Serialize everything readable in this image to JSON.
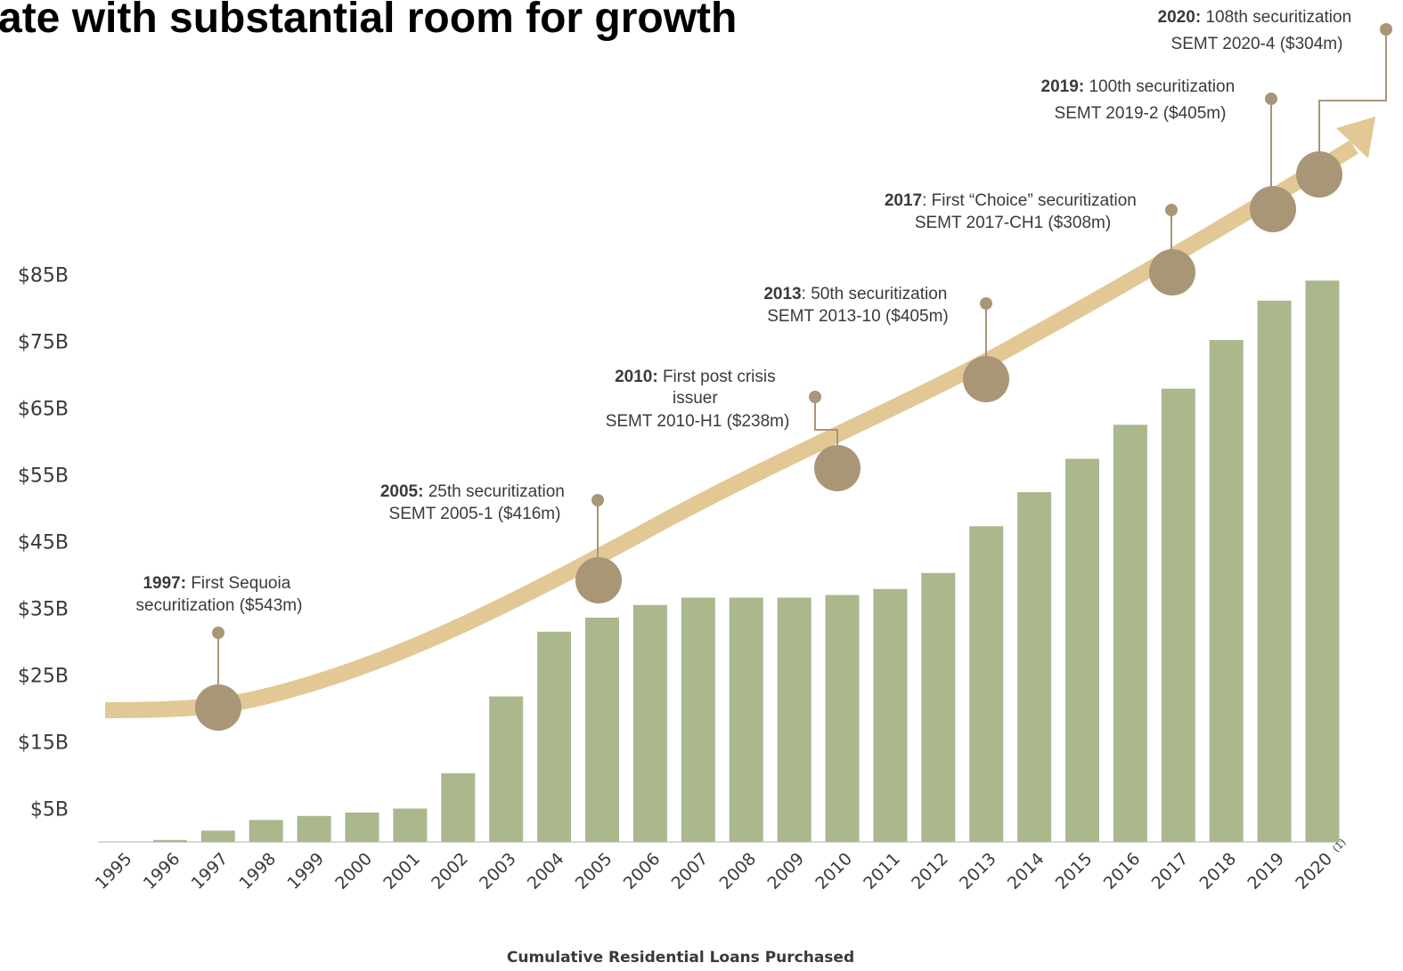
{
  "title": "ate with substantial room for growth",
  "chart_data": {
    "type": "bar",
    "categories": [
      "1995",
      "1996",
      "1997",
      "1998",
      "1999",
      "2000",
      "2001",
      "2002",
      "2003",
      "2004",
      "2005",
      "2006",
      "2007",
      "2008",
      "2009",
      "2010",
      "2011",
      "2012",
      "2013",
      "2014",
      "2015",
      "2016",
      "2017",
      "2018",
      "2019",
      "2020"
    ],
    "category_footnote": {
      "category": "2020",
      "marker": "(1)"
    },
    "values": [
      0,
      0.3,
      1.7,
      3.3,
      3.9,
      4.4,
      5.0,
      10.3,
      21.8,
      31.5,
      33.6,
      35.5,
      36.6,
      36.6,
      36.6,
      37.0,
      37.9,
      40.3,
      47.3,
      52.4,
      57.4,
      62.5,
      67.9,
      75.2,
      81.1,
      84.1
    ],
    "y_ticks": [
      "$5B",
      "$15B",
      "$25B",
      "$35B",
      "$45B",
      "$55B",
      "$65B",
      "$75B",
      "$85B"
    ],
    "ylim": [
      0,
      90
    ],
    "xlabel": "Cumulative Residential Loans Purchased",
    "ylabel": "",
    "bar_color": "#aab88c",
    "trend_color": "#e2c894",
    "marker_color": "#a89677",
    "milestones": [
      {
        "category": "1997",
        "year": "1997:",
        "lines": [
          "First Sequoia",
          "securitization ($543m)"
        ]
      },
      {
        "category": "2005",
        "year": "2005:",
        "lines": [
          "25th securitization",
          "SEMT 2005-1 ($416m)"
        ]
      },
      {
        "category": "2010",
        "year": "2010:",
        "lines": [
          "First post crisis",
          "issuer",
          "SEMT 2010-H1 ($238m)"
        ]
      },
      {
        "category": "2013",
        "year": "2013",
        "lines": [
          ": 50th securitization",
          "SEMT 2013-10 ($405m)"
        ]
      },
      {
        "category": "2017",
        "year": "2017",
        "lines": [
          ": First “Choice” securitization",
          "SEMT 2017-CH1 ($308m)"
        ]
      },
      {
        "category": "2019",
        "year": "2019:",
        "lines": [
          "100th securitization",
          "SEMT 2019-2 ($405m)"
        ]
      },
      {
        "category": "2020",
        "year": "2020:",
        "lines": [
          "108th securitization",
          "SEMT 2020-4 ($304m)"
        ]
      }
    ]
  }
}
